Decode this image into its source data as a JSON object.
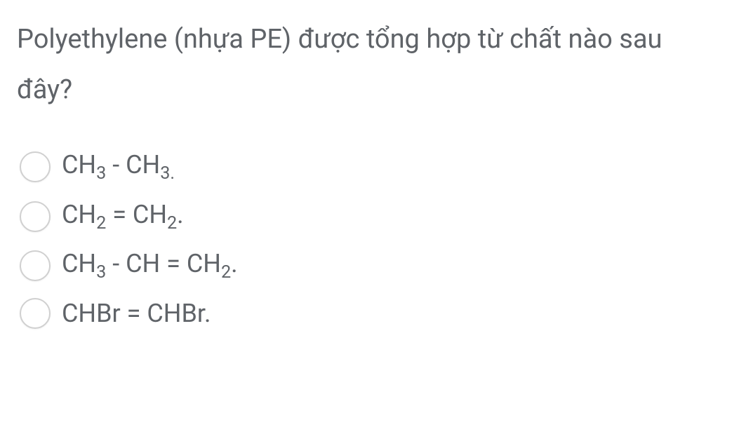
{
  "question": {
    "text": "Polyethylene (nhựa PE) được tổng hợp từ chất nào sau đây?"
  },
  "options": [
    {
      "formula_parts": [
        {
          "text": "CH",
          "sub": "3"
        },
        {
          "text": " - CH",
          "sub": "3."
        }
      ]
    },
    {
      "formula_parts": [
        {
          "text": "CH",
          "sub": "2"
        },
        {
          "text": " = CH",
          "sub": "2"
        },
        {
          "text": ".",
          "sub": ""
        }
      ]
    },
    {
      "formula_parts": [
        {
          "text": "CH",
          "sub": "3"
        },
        {
          "text": " - CH = CH",
          "sub": "2"
        },
        {
          "text": ".",
          "sub": ""
        }
      ]
    },
    {
      "formula_parts": [
        {
          "text": "CHBr = CHBr.",
          "sub": ""
        }
      ]
    }
  ],
  "styling": {
    "text_color": "#5f6368",
    "background_color": "#ffffff",
    "radio_border_color": "#d0d0d0",
    "question_fontsize": 38,
    "option_fontsize": 36
  }
}
